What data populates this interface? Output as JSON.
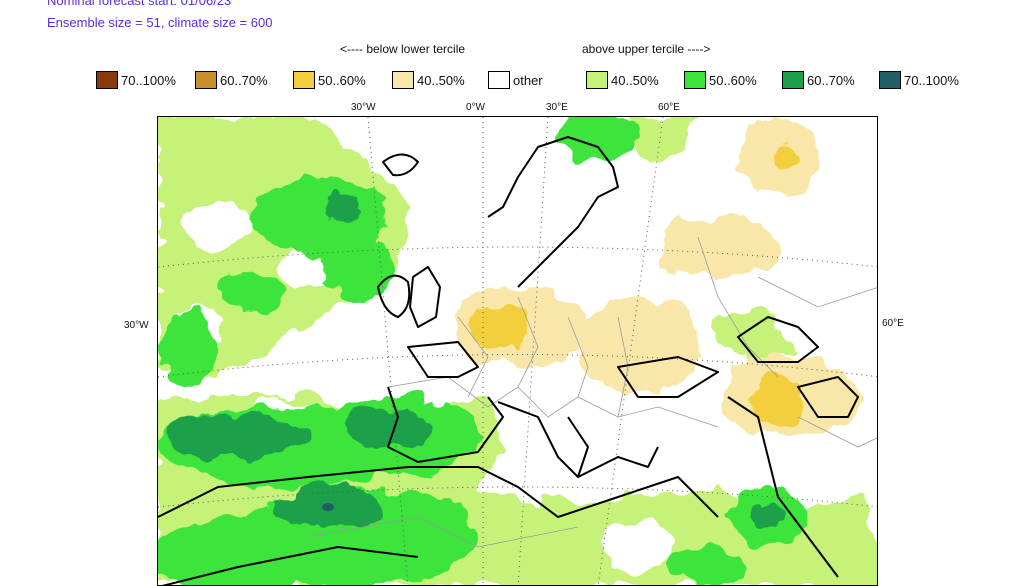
{
  "header": {
    "forecast_start": "Nominal forecast start: 01/06/23",
    "ensemble": "Ensemble size = 51, climate size = 600"
  },
  "legend": {
    "below_label": "<---- below lower tercile",
    "above_label": "above upper tercile ---->",
    "items": [
      {
        "label": "70..100%",
        "color": "#8b3a0e"
      },
      {
        "label": "60..70%",
        "color": "#c8902a"
      },
      {
        "label": "50..60%",
        "color": "#f4cf3c"
      },
      {
        "label": "40..50%",
        "color": "#f8e7a8"
      },
      {
        "label": "other",
        "color": "#ffffff"
      },
      {
        "label": "40..50%",
        "color": "#c6f27a"
      },
      {
        "label": "50..60%",
        "color": "#3ee43a"
      },
      {
        "label": "60..70%",
        "color": "#1ca04a"
      },
      {
        "label": "70..100%",
        "color": "#1f5f66"
      }
    ]
  },
  "map": {
    "lon_labels_top": [
      "30°W",
      "0°W",
      "30°E",
      "60°E"
    ],
    "lat_label_left": "30°W",
    "lat_label_right": "60°E"
  }
}
